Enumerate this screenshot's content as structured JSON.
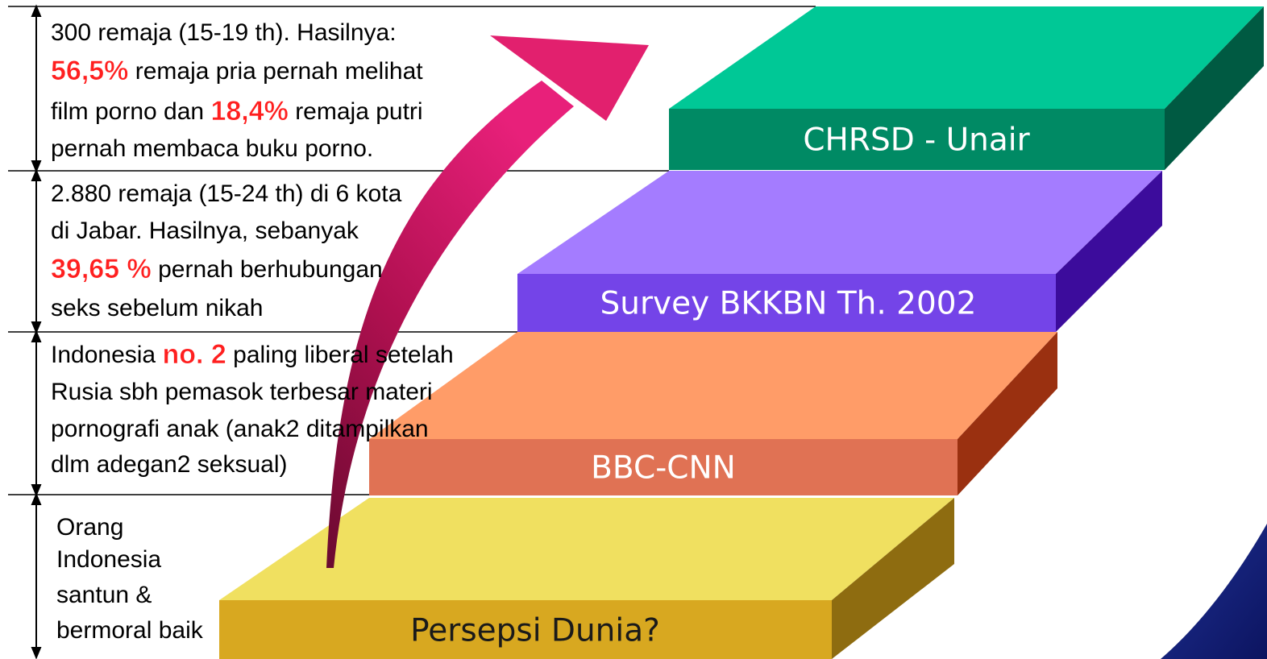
{
  "steps": [
    {
      "label": "CHRSD - Unair"
    },
    {
      "label": "Survey BKKBN Th. 2002"
    },
    {
      "label": "BBC-CNN"
    },
    {
      "label": "Persepsi Dunia?"
    }
  ],
  "rows": [
    {
      "lines": [
        [
          "300 remaja (15-19 th). Hasilnya:"
        ],
        [
          {
            "text": "56,5%",
            "emphasis": true
          },
          " remaja pria pernah melihat"
        ],
        [
          "film porno dan ",
          {
            "text": "18,4%",
            "emphasis": true
          },
          " remaja putri"
        ],
        [
          "pernah membaca buku porno."
        ]
      ]
    },
    {
      "lines": [
        [
          "2.880 remaja (15-24 th) di 6 kota"
        ],
        [
          "di Jabar. Hasilnya, sebanyak"
        ],
        [
          {
            "text": "39,65 %",
            "emphasis": true
          },
          " pernah berhubungan"
        ],
        [
          "seks sebelum nikah"
        ]
      ]
    },
    {
      "lines": [
        [
          "Indonesia ",
          {
            "text": "no. 2",
            "emphasis": true
          },
          " paling liberal setelah"
        ],
        [
          "Rusia sbh pemasok terbesar materi"
        ],
        [
          "pornografi anak (anak2 ditampilkan"
        ],
        [
          "dlm adegan2 seksual)"
        ]
      ]
    },
    {
      "lines": [
        [
          "Orang"
        ],
        [
          "Indonesia"
        ],
        [
          "santun &"
        ],
        [
          "bermoral baik"
        ]
      ]
    }
  ]
}
